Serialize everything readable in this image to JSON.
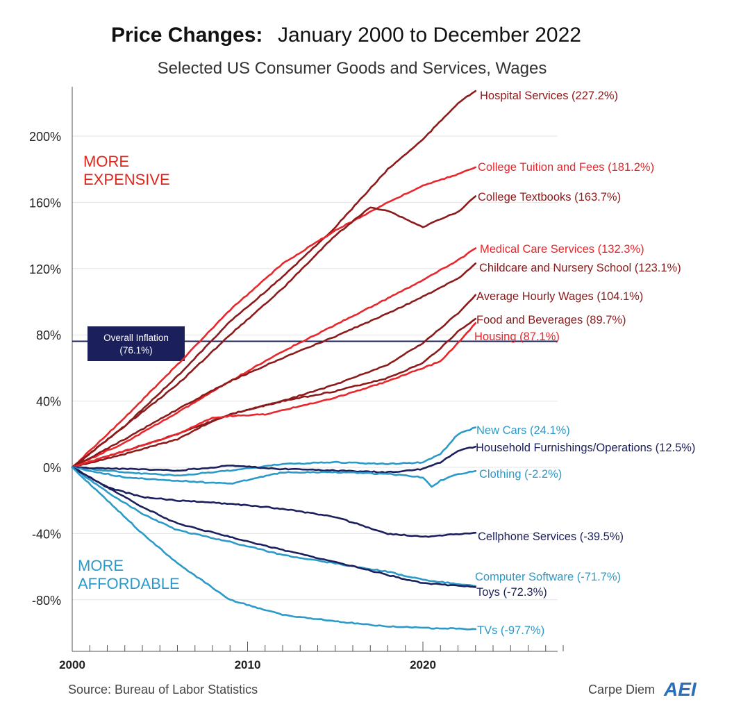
{
  "chart_data": {
    "type": "line",
    "title_bold": "Price Changes:",
    "title_rest": "January 2000 to December 2022",
    "subtitle": "Selected US Consumer Goods and Services, Wages",
    "ylim": [
      -110,
      230
    ],
    "xlim": [
      2000,
      2028
    ],
    "y_ticks": [
      {
        "value": 200,
        "label": "200%"
      },
      {
        "value": 160,
        "label": "160%"
      },
      {
        "value": 120,
        "label": "120%"
      },
      {
        "value": 80,
        "label": "80%"
      },
      {
        "value": 40,
        "label": "40%"
      },
      {
        "value": 0,
        "label": "0%"
      },
      {
        "value": -40,
        "label": "-40%"
      },
      {
        "value": -80,
        "label": "-80%"
      }
    ],
    "x_ticks": [
      {
        "value": 2000,
        "label": "2000"
      },
      {
        "value": 2010,
        "label": "2010"
      },
      {
        "value": 2020,
        "label": "2020"
      }
    ],
    "grid": true,
    "reference_line": {
      "value": 76.1,
      "label_line1": "Overall Inflation",
      "label_line2": "(76.1%)",
      "color": "#1b1f5c"
    },
    "zones": [
      {
        "line1": "MORE",
        "line2": "EXPENSIVE",
        "color": "#e1251b"
      },
      {
        "line1": "MORE",
        "line2": "AFFORDABLE",
        "color": "#2b9ac9"
      }
    ],
    "series": [
      {
        "label": "Hospital Services (227.2%)",
        "color": "#8b1a1a",
        "x": [
          2000,
          2003,
          2006,
          2009,
          2012,
          2015,
          2018,
          2020,
          2022,
          2023
        ],
        "values": [
          0,
          25,
          55,
          88,
          115,
          145,
          180,
          198,
          220,
          227.2
        ]
      },
      {
        "label": "College Tuition and Fees (181.2%)",
        "color": "#e8262b",
        "x": [
          2000,
          2003,
          2006,
          2009,
          2012,
          2015,
          2018,
          2020,
          2022,
          2023
        ],
        "values": [
          0,
          30,
          62,
          95,
          123,
          143,
          160,
          170,
          177,
          181.2
        ]
      },
      {
        "label": "College Textbooks (163.7%)",
        "color": "#8b1a1a",
        "x": [
          2000,
          2003,
          2006,
          2009,
          2012,
          2015,
          2017,
          2018,
          2019,
          2020,
          2021,
          2022,
          2023
        ],
        "values": [
          0,
          25,
          50,
          80,
          108,
          140,
          157,
          155,
          150,
          145,
          150,
          154,
          163.7
        ]
      },
      {
        "label": "Medical Care Services (132.3%)",
        "color": "#e8262b",
        "x": [
          2000,
          2003,
          2006,
          2009,
          2012,
          2015,
          2018,
          2020,
          2022,
          2023
        ],
        "values": [
          0,
          15,
          33,
          52,
          70,
          86,
          102,
          113,
          125,
          132.3
        ]
      },
      {
        "label": "Childcare and Nursery School (123.1%)",
        "color": "#8b1a1a",
        "x": [
          2000,
          2003,
          2006,
          2009,
          2012,
          2015,
          2018,
          2020,
          2022,
          2023
        ],
        "values": [
          0,
          17,
          35,
          52,
          66,
          79,
          93,
          103,
          114,
          123.1
        ]
      },
      {
        "label": "Average Hourly Wages (104.1%)",
        "color": "#8b1a1a",
        "x": [
          2000,
          2003,
          2006,
          2009,
          2012,
          2015,
          2018,
          2020,
          2022,
          2023
        ],
        "values": [
          0,
          10,
          20,
          32,
          40,
          50,
          62,
          75,
          93,
          104.1
        ]
      },
      {
        "label": "Food and Beverages (89.7%)",
        "color": "#8b1a1a",
        "x": [
          2000,
          2003,
          2006,
          2008,
          2009,
          2012,
          2015,
          2018,
          2020,
          2021,
          2022,
          2023
        ],
        "values": [
          0,
          8,
          17,
          28,
          32,
          40,
          46,
          54,
          63,
          72,
          82,
          89.7
        ]
      },
      {
        "label": "Housing (87.1%)",
        "color": "#e8262b",
        "x": [
          2000,
          2003,
          2006,
          2008,
          2009,
          2011,
          2015,
          2018,
          2020,
          2021,
          2022,
          2023
        ],
        "values": [
          0,
          10,
          20,
          30,
          31,
          32,
          42,
          52,
          60,
          64,
          75,
          87.1
        ]
      },
      {
        "label": "New Cars (24.1%)",
        "color": "#2b9ac9",
        "x": [
          2000,
          2003,
          2006,
          2009,
          2012,
          2015,
          2018,
          2020,
          2021,
          2022,
          2023
        ],
        "values": [
          0,
          -3,
          -5,
          -2,
          2,
          3,
          2,
          3,
          8,
          20,
          24.1
        ]
      },
      {
        "label": "Household Furnishings/Operations (12.5%)",
        "color": "#1b1f5c",
        "x": [
          2000,
          2003,
          2006,
          2009,
          2012,
          2015,
          2018,
          2020,
          2021,
          2022,
          2023
        ],
        "values": [
          0,
          -1,
          -2,
          1,
          -1,
          -2,
          -3,
          -1,
          3,
          10,
          12.5
        ]
      },
      {
        "label": "Clothing (-2.2%)",
        "color": "#2b9ac9",
        "x": [
          2000,
          2003,
          2006,
          2009,
          2012,
          2015,
          2018,
          2020,
          2020.5,
          2021,
          2022,
          2023
        ],
        "values": [
          0,
          -6,
          -8,
          -10,
          -3,
          -3,
          -4,
          -6,
          -12,
          -8,
          -4,
          -2.2
        ]
      },
      {
        "label": "Cellphone Services (-39.5%)",
        "color": "#1b1f5c",
        "x": [
          2000,
          2002,
          2004,
          2006,
          2009,
          2012,
          2015,
          2018,
          2020,
          2023
        ],
        "values": [
          0,
          -12,
          -18,
          -20,
          -22,
          -25,
          -30,
          -40,
          -42,
          -39.5
        ]
      },
      {
        "label": "Computer Software (-71.7%)",
        "color": "#2b9ac9",
        "x": [
          2000,
          2002,
          2004,
          2006,
          2009,
          2012,
          2015,
          2018,
          2020,
          2023
        ],
        "values": [
          0,
          -15,
          -28,
          -38,
          -45,
          -53,
          -58,
          -63,
          -68,
          -71.7
        ]
      },
      {
        "label": "Toys (-72.3%)",
        "color": "#1b1f5c",
        "x": [
          2000,
          2002,
          2004,
          2006,
          2009,
          2012,
          2015,
          2018,
          2020,
          2023
        ],
        "values": [
          0,
          -12,
          -24,
          -34,
          -42,
          -50,
          -57,
          -65,
          -70,
          -72.3
        ]
      },
      {
        "label": "TVs (-97.7%)",
        "color": "#2b9ac9",
        "x": [
          2000,
          2002,
          2004,
          2006,
          2009,
          2012,
          2015,
          2018,
          2020,
          2023
        ],
        "values": [
          0,
          -20,
          -40,
          -58,
          -80,
          -89,
          -93,
          -96,
          -97,
          -97.7
        ]
      }
    ]
  },
  "footer": {
    "source": "Source: Bureau of Labor Statistics",
    "brand": "Carpe Diem",
    "logo_text": "AEI"
  }
}
